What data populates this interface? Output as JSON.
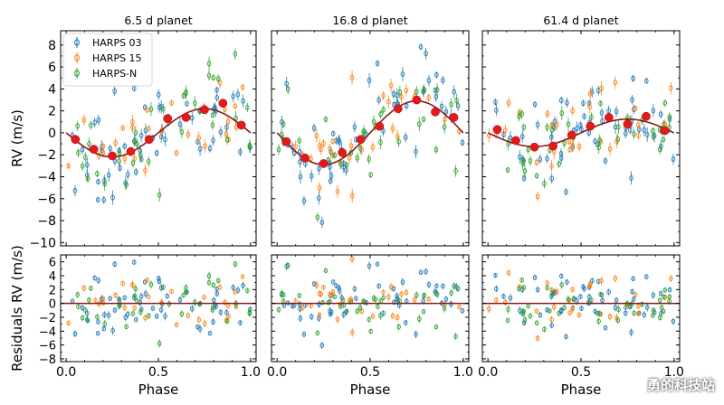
{
  "figure": {
    "ylabel_top": "RV (m/s)",
    "ylabel_bottom": "Residuals RV (m/s)",
    "xlabel": "Phase",
    "watermark": "勇的科技站",
    "top_yticks": [
      -10,
      -8,
      -6,
      -4,
      -2,
      0,
      2,
      4,
      6,
      8
    ],
    "top_ylim": [
      -10.3,
      9.3
    ],
    "bottom_yticks": [
      -8,
      -6,
      -4,
      -2,
      0,
      2,
      4,
      6
    ],
    "bottom_ylim": [
      -8.4,
      7.0
    ],
    "xticks": [
      0.0,
      0.5,
      1.0
    ],
    "xtick_labels": [
      "0.0",
      "0.5",
      "1.0"
    ],
    "xlim": [
      -0.03,
      1.03
    ]
  },
  "legend": {
    "entries": [
      {
        "label": "HARPS 03",
        "color": "#1f77b4"
      },
      {
        "label": "HARPS 15",
        "color": "#ff7f0e"
      },
      {
        "label": "HARPS-N",
        "color": "#2ca02c"
      }
    ]
  },
  "colors": {
    "model": "#8b1a1a",
    "binned": "#e31a1c",
    "harps03": "#1f77b4",
    "harps15": "#ff7f0e",
    "harpsn": "#2ca02c"
  },
  "chart_data": [
    {
      "type": "scatter",
      "title": "6.5 d planet",
      "model": {
        "amplitude": 2.2,
        "phase_of_peak": 0.75
      },
      "binned": {
        "x": [
          0.05,
          0.15,
          0.25,
          0.35,
          0.45,
          0.55,
          0.65,
          0.75,
          0.85,
          0.95
        ],
        "y": [
          -0.6,
          -1.5,
          -2.1,
          -1.7,
          -0.6,
          1.3,
          1.4,
          2.1,
          2.7,
          0.7
        ]
      },
      "scatter_points_per_instrument": [
        60,
        30,
        40
      ],
      "scatter_spread": 2.3
    },
    {
      "type": "scatter",
      "title": "16.8 d planet",
      "model": {
        "amplitude": 2.9,
        "phase_of_peak": 0.75
      },
      "binned": {
        "x": [
          0.05,
          0.15,
          0.25,
          0.35,
          0.45,
          0.55,
          0.65,
          0.75,
          0.85,
          0.95
        ],
        "y": [
          -0.8,
          -2.3,
          -2.8,
          -1.8,
          -0.6,
          0.6,
          2.2,
          3.0,
          1.9,
          1.4
        ]
      },
      "scatter_points_per_instrument": [
        60,
        30,
        40
      ],
      "scatter_spread": 2.0
    },
    {
      "type": "scatter",
      "title": "61.4 d planet",
      "model": {
        "amplitude": 1.25,
        "phase_of_peak": 0.75
      },
      "binned": {
        "x": [
          0.05,
          0.15,
          0.25,
          0.35,
          0.45,
          0.55,
          0.65,
          0.75,
          0.85,
          0.95
        ],
        "y": [
          0.3,
          -0.7,
          -1.3,
          -1.2,
          -0.2,
          0.6,
          1.4,
          0.8,
          1.5,
          0.2
        ]
      },
      "scatter_points_per_instrument": [
        60,
        30,
        40
      ],
      "scatter_spread": 2.0
    }
  ]
}
